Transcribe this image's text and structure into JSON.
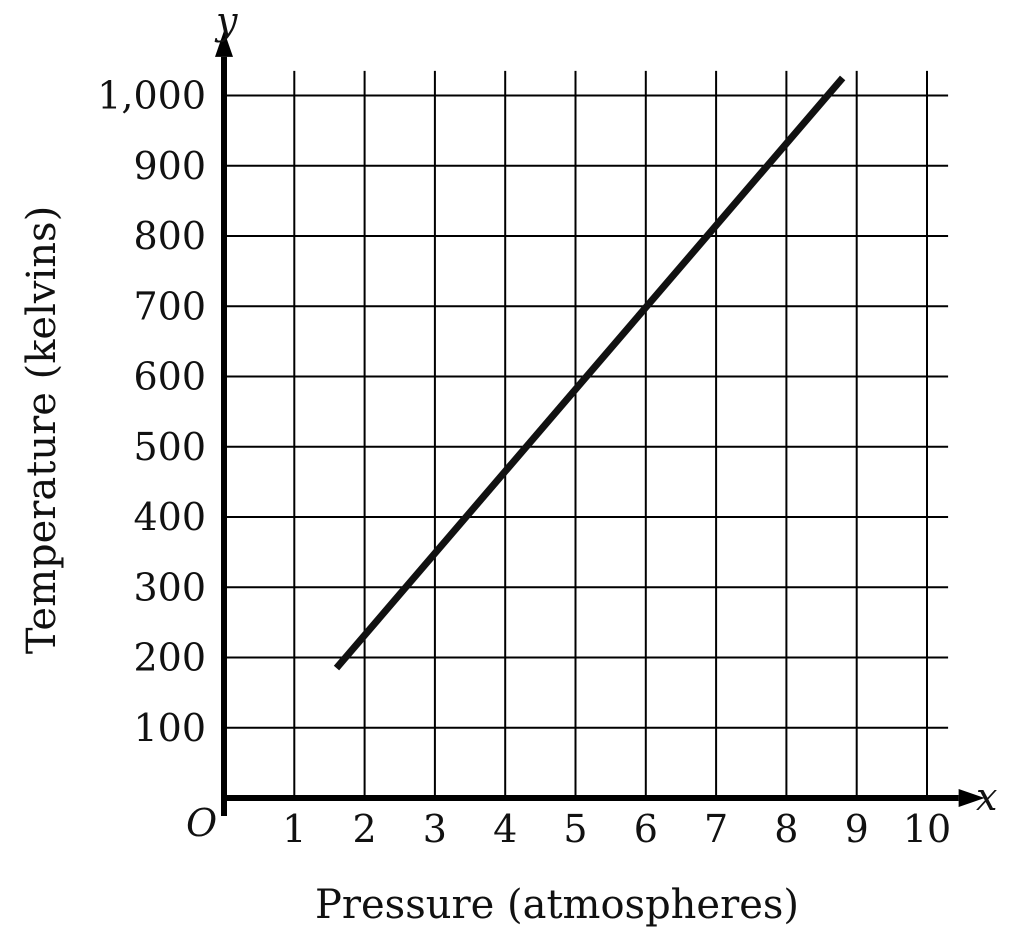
{
  "chart_data": {
    "type": "line",
    "xlabel": "Pressure (atmospheres)",
    "ylabel": "Temperature (kelvins)",
    "x_axis_symbol": "x",
    "y_axis_symbol": "y",
    "origin_label": "O",
    "xlim": [
      0,
      10
    ],
    "ylim": [
      0,
      1000
    ],
    "x_ticks": [
      "1",
      "2",
      "3",
      "4",
      "5",
      "6",
      "7",
      "8",
      "9",
      "10"
    ],
    "y_ticks": [
      "100",
      "200",
      "300",
      "400",
      "500",
      "600",
      "700",
      "800",
      "900",
      "1,000"
    ],
    "grid": true,
    "series": [
      {
        "x": [
          1.6,
          8.8
        ],
        "y": [
          185,
          1025
        ]
      }
    ]
  }
}
